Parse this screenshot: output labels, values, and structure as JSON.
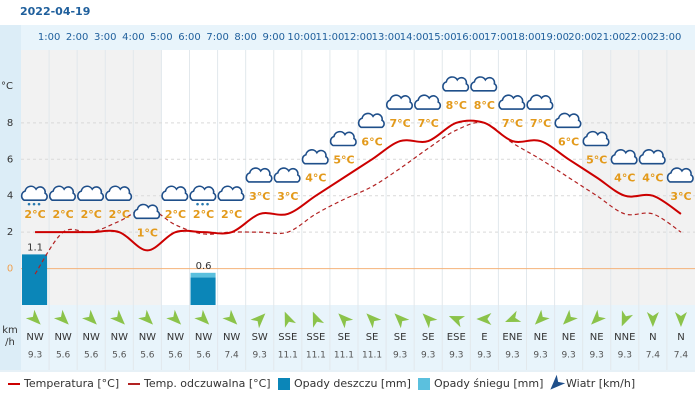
{
  "chart_data": {
    "type": "line",
    "title": "2022-04-19",
    "hour_labels": [
      "1:00",
      "2:00",
      "3:00",
      "4:00",
      "5:00",
      "6:00",
      "7:00",
      "8:00",
      "9:00",
      "10:00",
      "11:00",
      "12:00",
      "13:00",
      "14:00",
      "15:00",
      "16:00",
      "17:00",
      "18:00",
      "19:00",
      "20:00",
      "21:00",
      "22:00",
      "23:00"
    ],
    "y_unit": "°C",
    "ylim": [
      -2,
      12
    ],
    "yticks": [
      0,
      2,
      4,
      6,
      8
    ],
    "grid": true,
    "series": [
      {
        "name": "Temperatura [°C]",
        "color": "#cc0000",
        "values": [
          2,
          2,
          2,
          2,
          1,
          2,
          2,
          2,
          3,
          3,
          4,
          5,
          6,
          7,
          7,
          8,
          8,
          7,
          7,
          6,
          5,
          4,
          4,
          3
        ],
        "value_labels": [
          "2°C",
          "2°C",
          "2°C",
          "2°C",
          "1°C",
          "2°C",
          "2°C",
          "2°C",
          "3°C",
          "3°C",
          "4°C",
          "5°C",
          "6°C",
          "7°C",
          "7°C",
          "8°C",
          "8°C",
          "7°C",
          "7°C",
          "6°C",
          "5°C",
          "4°C",
          "4°C",
          "3°C"
        ]
      },
      {
        "name": "Temp. odczuwalna [°C]",
        "color": "#b22222",
        "dashed": true,
        "values": [
          -0.3,
          2,
          2,
          2.6,
          3.3,
          2.4,
          1.9,
          2,
          2,
          2,
          3,
          3.8,
          4.5,
          5.5,
          6.6,
          7.6,
          8,
          6.9,
          6,
          5,
          4,
          3,
          3,
          2
        ]
      },
      {
        "name": "Opady deszczu [mm]",
        "color": "#0b86b8",
        "values": [
          1.1,
          0,
          0,
          0,
          0,
          0,
          0.6,
          0,
          0,
          0,
          0,
          0,
          0,
          0,
          0,
          0,
          0,
          0,
          0,
          0,
          0,
          0,
          0,
          0
        ]
      },
      {
        "name": "Opady śniegu [mm]",
        "color": "#5bc0de",
        "values": [
          0,
          0,
          0,
          0,
          0,
          0,
          0.1,
          0,
          0,
          0,
          0,
          0,
          0,
          0,
          0,
          0,
          0,
          0,
          0,
          0,
          0,
          0,
          0,
          0
        ]
      },
      {
        "name": "Wiatr [km/h]",
        "color": "#8bc34a",
        "wind_unit": [
          "km",
          "/h"
        ],
        "directions": [
          "NW",
          "NW",
          "NW",
          "NW",
          "NW",
          "NW",
          "NW",
          "NW",
          "SW",
          "SSE",
          "SSE",
          "SE",
          "SE",
          "SE",
          "SE",
          "ESE",
          "E",
          "ENE",
          "NE",
          "NE",
          "NE",
          "NNE",
          "N",
          "N"
        ],
        "values": [
          9.3,
          5.6,
          5.6,
          5.6,
          5.6,
          5.6,
          5.6,
          7.4,
          9.3,
          11.1,
          11.1,
          11.1,
          11.1,
          9.3,
          9.3,
          9.3,
          9.3,
          9.3,
          9.3,
          9.3,
          9.3,
          9.3,
          7.4,
          7.4
        ]
      }
    ]
  }
}
